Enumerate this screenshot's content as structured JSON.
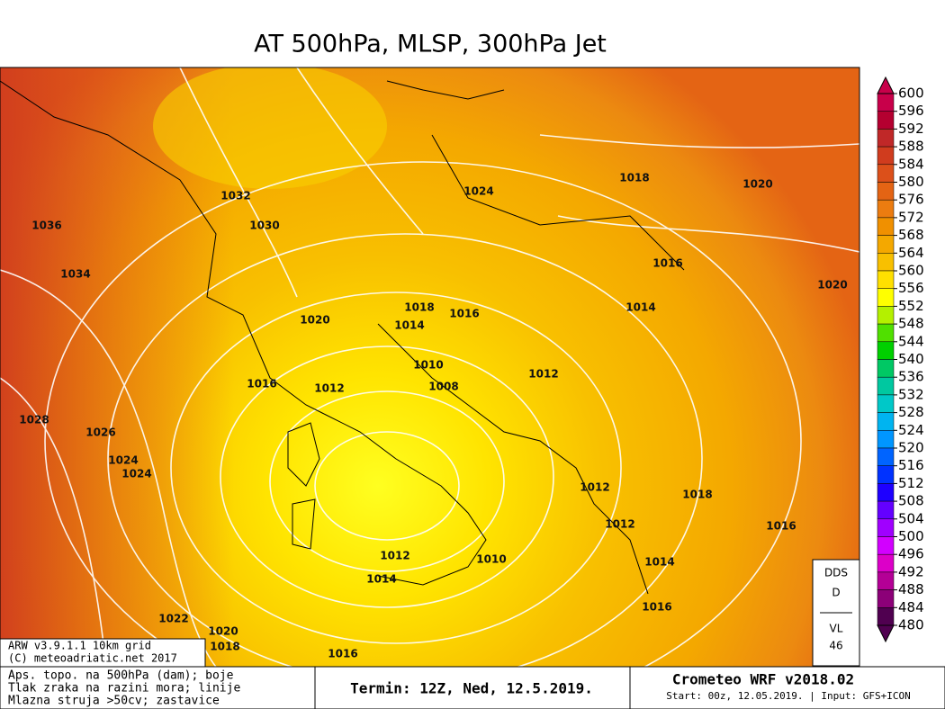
{
  "header": {
    "title": "AT 500hPa, MLSP, 300hPa Jet"
  },
  "map": {
    "isobar_labels": [
      1032,
      1030,
      1036,
      1034,
      1024,
      1018,
      1020,
      1016,
      1020,
      1014,
      1018,
      1016,
      1020,
      1014,
      1010,
      1008,
      1012,
      1016,
      1012,
      1028,
      1026,
      1024,
      1024,
      1012,
      1018,
      1012,
      1016,
      1012,
      1010,
      1014,
      1014,
      1016,
      1022,
      1020,
      1018,
      1016
    ]
  },
  "colorbar": {
    "levels": [
      600,
      596,
      592,
      588,
      584,
      580,
      576,
      572,
      568,
      564,
      560,
      556,
      552,
      548,
      544,
      540,
      536,
      532,
      528,
      524,
      520,
      516,
      512,
      508,
      504,
      500,
      496,
      492,
      488,
      484,
      480
    ],
    "colors": [
      "#c8004a",
      "#b40030",
      "#c02828",
      "#d03c1e",
      "#dc501a",
      "#e46414",
      "#ec7c10",
      "#f09000",
      "#f4a800",
      "#f8c000",
      "#ffe000",
      "#ffff00",
      "#b4f000",
      "#50e000",
      "#00d000",
      "#00c864",
      "#00c8a0",
      "#00c8c8",
      "#00b4f0",
      "#0096ff",
      "#0064ff",
      "#0032ff",
      "#1e00ff",
      "#6400ff",
      "#a000ff",
      "#d200ff",
      "#dc00c8",
      "#b40096",
      "#8c0078",
      "#500050"
    ]
  },
  "info_box": {
    "lines": [
      "DDS",
      "D",
      "VL",
      "46"
    ]
  },
  "model_box": {
    "lines": [
      "ARW v3.9.1.1 10km grid",
      "(C) meteoadriatic.net 2017"
    ]
  },
  "footer": {
    "legend_lines": [
      "Aps. topo. na 500hPa (dam); boje",
      "Tlak zraka na razini mora; linije",
      "Mlazna struja >50cv; zastavice"
    ],
    "termin": "Termin: 12Z, Ned, 12.5.2019.",
    "model": "Crometeo WRF v2018.02",
    "start": "Start: 00z, 12.05.2019. | Input: GFS+ICON"
  }
}
